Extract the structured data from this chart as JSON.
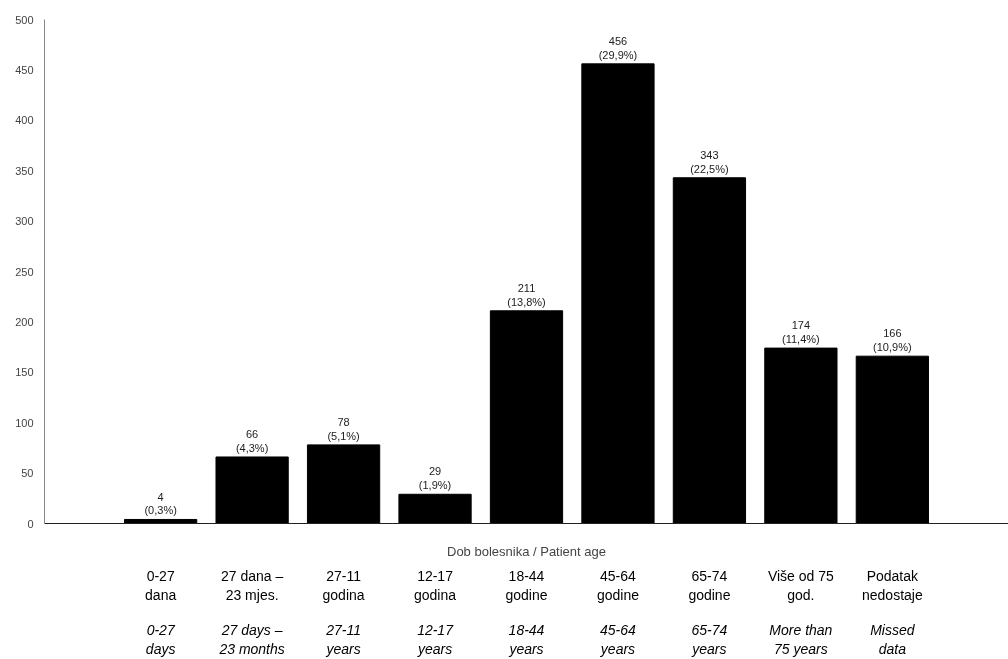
{
  "chart_data": {
    "type": "bar",
    "xlabel": "Dob bolesnika / Patient age",
    "categories": [
      "0-27\ndana\n\n0-27\ndays",
      "27 dana –\n23 mjes.\n\n27 days –\n23 months",
      "27-11\ngodina\n\n27-11\nyears",
      "12-17\ngodina\n\n12-17\nyears",
      "18-44\ngodine\n\n18-44\nyears",
      "45-64\ngodine\n\n45-64\nyears",
      "65-74\ngodine\n\n65-74\nyears",
      "Više od 75\ngod.\n\nMore than\n75 years",
      "Podatak\nnedostaje\n\nMissed\ndata"
    ],
    "values": [
      4,
      66,
      78,
      29,
      211,
      456,
      343,
      174,
      166
    ],
    "value_labels": [
      "4\n(0,3%)",
      "66\n(4,3%)",
      "78\n(5,1%)",
      "29\n(1,9%)",
      "211\n(13,8%)",
      "456\n(29,9%)",
      "343\n(22,5%)",
      "174\n(11,4%)",
      "166\n(10,9%)"
    ],
    "color": "#000000",
    "ylim": [
      0,
      500
    ],
    "yticks": [
      0,
      50,
      100,
      150,
      200,
      250,
      300,
      350,
      400,
      450,
      500
    ],
    "grid": false
  }
}
